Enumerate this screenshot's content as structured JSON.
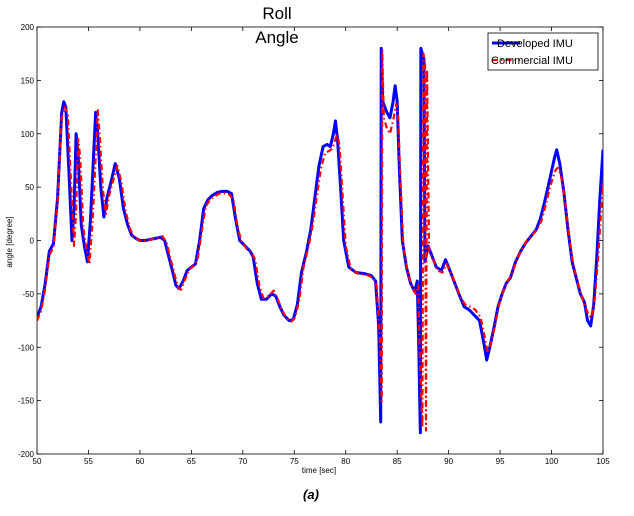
{
  "chart_data": {
    "type": "line",
    "title_lines": [
      "Roll",
      "Angle"
    ],
    "xlabel": "time [sec]",
    "ylabel": "angle [degree]",
    "xlim": [
      50,
      105
    ],
    "ylim": [
      -200,
      200
    ],
    "xticks": [
      50,
      55,
      60,
      65,
      70,
      75,
      80,
      85,
      90,
      95,
      100,
      105
    ],
    "yticks": [
      -200,
      -150,
      -100,
      -50,
      0,
      50,
      100,
      150,
      200
    ],
    "grid": false,
    "legend_position": "top-right",
    "caption": "(a)",
    "series": [
      {
        "name": "Developed IMU",
        "color": "#0000ff",
        "style": "solid",
        "points": [
          [
            50,
            -72
          ],
          [
            50.4,
            -62
          ],
          [
            50.8,
            -40
          ],
          [
            51.2,
            -10
          ],
          [
            51.6,
            -3
          ],
          [
            52,
            40
          ],
          [
            52.4,
            120
          ],
          [
            52.6,
            130
          ],
          [
            52.8,
            125
          ],
          [
            53.1,
            65
          ],
          [
            53.4,
            0
          ],
          [
            53.6,
            30
          ],
          [
            53.8,
            100
          ],
          [
            54.0,
            80
          ],
          [
            54.3,
            15
          ],
          [
            54.6,
            -5
          ],
          [
            54.9,
            -20
          ],
          [
            55.2,
            20
          ],
          [
            55.5,
            80
          ],
          [
            55.7,
            120
          ],
          [
            55.9,
            100
          ],
          [
            56.2,
            50
          ],
          [
            56.5,
            22
          ],
          [
            56.8,
            40
          ],
          [
            57.2,
            55
          ],
          [
            57.6,
            72
          ],
          [
            58,
            58
          ],
          [
            58.4,
            30
          ],
          [
            58.8,
            15
          ],
          [
            59.2,
            5
          ],
          [
            59.6,
            2
          ],
          [
            60,
            0
          ],
          [
            60.5,
            0
          ],
          [
            61,
            1
          ],
          [
            61.5,
            2
          ],
          [
            62,
            3
          ],
          [
            62.4,
            0
          ],
          [
            62.8,
            -15
          ],
          [
            63.2,
            -30
          ],
          [
            63.5,
            -42
          ],
          [
            63.8,
            -45
          ],
          [
            64.2,
            -38
          ],
          [
            64.6,
            -28
          ],
          [
            65,
            -25
          ],
          [
            65.4,
            -22
          ],
          [
            65.8,
            0
          ],
          [
            66.2,
            30
          ],
          [
            66.6,
            38
          ],
          [
            67,
            42
          ],
          [
            67.5,
            45
          ],
          [
            68,
            46
          ],
          [
            68.5,
            46
          ],
          [
            68.9,
            44
          ],
          [
            69.3,
            20
          ],
          [
            69.7,
            0
          ],
          [
            70.2,
            -5
          ],
          [
            70.7,
            -10
          ],
          [
            71.0,
            -15
          ],
          [
            71.4,
            -40
          ],
          [
            71.8,
            -55
          ],
          [
            72.3,
            -55
          ],
          [
            72.8,
            -50
          ],
          [
            73.2,
            -52
          ],
          [
            73.6,
            -62
          ],
          [
            74,
            -70
          ],
          [
            74.5,
            -75
          ],
          [
            74.9,
            -74
          ],
          [
            75.3,
            -60
          ],
          [
            75.7,
            -30
          ],
          [
            76.2,
            -10
          ],
          [
            76.6,
            10
          ],
          [
            77.0,
            40
          ],
          [
            77.4,
            70
          ],
          [
            77.8,
            88
          ],
          [
            78.2,
            90
          ],
          [
            78.5,
            88
          ],
          [
            78.8,
            100
          ],
          [
            79.0,
            112
          ],
          [
            79.2,
            95
          ],
          [
            79.5,
            50
          ],
          [
            79.8,
            0
          ],
          [
            80.3,
            -25
          ],
          [
            81,
            -30
          ],
          [
            81.8,
            -31
          ],
          [
            82.5,
            -33
          ],
          [
            82.9,
            -38
          ],
          [
            83.2,
            -80
          ],
          [
            83.4,
            -170
          ],
          [
            83.45,
            180
          ],
          [
            83.6,
            130
          ],
          [
            84.0,
            120
          ],
          [
            84.3,
            115
          ],
          [
            84.6,
            130
          ],
          [
            84.8,
            145
          ],
          [
            85.0,
            130
          ],
          [
            85.2,
            70
          ],
          [
            85.5,
            0
          ],
          [
            85.9,
            -25
          ],
          [
            86.3,
            -40
          ],
          [
            86.7,
            -48
          ],
          [
            86.95,
            -38
          ],
          [
            87.1,
            -100
          ],
          [
            87.25,
            -180
          ],
          [
            87.3,
            180
          ],
          [
            87.6,
            170
          ],
          [
            87.7,
            -20
          ],
          [
            88.0,
            -5
          ],
          [
            88.4,
            -15
          ],
          [
            88.8,
            -25
          ],
          [
            89.3,
            -28
          ],
          [
            89.7,
            -18
          ],
          [
            90.2,
            -30
          ],
          [
            90.6,
            -40
          ],
          [
            91,
            -50
          ],
          [
            91.5,
            -62
          ],
          [
            92,
            -65
          ],
          [
            92.5,
            -70
          ],
          [
            93,
            -75
          ],
          [
            93.4,
            -95
          ],
          [
            93.7,
            -112
          ],
          [
            94.0,
            -100
          ],
          [
            94.4,
            -82
          ],
          [
            94.8,
            -62
          ],
          [
            95.2,
            -50
          ],
          [
            95.6,
            -40
          ],
          [
            96,
            -35
          ],
          [
            96.5,
            -20
          ],
          [
            97,
            -10
          ],
          [
            97.5,
            -2
          ],
          [
            98,
            4
          ],
          [
            98.5,
            10
          ],
          [
            98.9,
            20
          ],
          [
            99.3,
            35
          ],
          [
            99.7,
            52
          ],
          [
            100.0,
            65
          ],
          [
            100.3,
            78
          ],
          [
            100.5,
            85
          ],
          [
            100.8,
            72
          ],
          [
            101.2,
            45
          ],
          [
            101.6,
            10
          ],
          [
            102,
            -20
          ],
          [
            102.4,
            -35
          ],
          [
            102.8,
            -50
          ],
          [
            103.2,
            -58
          ],
          [
            103.5,
            -75
          ],
          [
            103.8,
            -80
          ],
          [
            104.1,
            -60
          ],
          [
            104.4,
            -15
          ],
          [
            104.7,
            40
          ],
          [
            105,
            85
          ]
        ]
      },
      {
        "name": "Commercial IMU",
        "color": "#ff0000",
        "style": "dashdot",
        "points": [
          [
            50,
            -75
          ],
          [
            50.4,
            -66
          ],
          [
            50.8,
            -45
          ],
          [
            51.2,
            -14
          ],
          [
            51.6,
            -6
          ],
          [
            52,
            35
          ],
          [
            52.4,
            115
          ],
          [
            52.7,
            125
          ],
          [
            53.0,
            118
          ],
          [
            53.3,
            55
          ],
          [
            53.6,
            -5
          ],
          [
            53.8,
            28
          ],
          [
            54.0,
            95
          ],
          [
            54.2,
            78
          ],
          [
            54.5,
            12
          ],
          [
            54.8,
            -8
          ],
          [
            55.1,
            -22
          ],
          [
            55.4,
            18
          ],
          [
            55.7,
            78
          ],
          [
            55.9,
            122
          ],
          [
            56.1,
            98
          ],
          [
            56.4,
            48
          ],
          [
            56.7,
            25
          ],
          [
            57.0,
            42
          ],
          [
            57.4,
            56
          ],
          [
            57.8,
            70
          ],
          [
            58.2,
            55
          ],
          [
            58.6,
            28
          ],
          [
            59.0,
            12
          ],
          [
            59.4,
            3
          ],
          [
            59.8,
            1
          ],
          [
            60.2,
            -1
          ],
          [
            60.7,
            0
          ],
          [
            61.2,
            1
          ],
          [
            61.7,
            2
          ],
          [
            62.2,
            4
          ],
          [
            62.6,
            -2
          ],
          [
            63.0,
            -18
          ],
          [
            63.4,
            -33
          ],
          [
            63.7,
            -44
          ],
          [
            64.0,
            -46
          ],
          [
            64.4,
            -36
          ],
          [
            64.8,
            -27
          ],
          [
            65.2,
            -24
          ],
          [
            65.6,
            -18
          ],
          [
            66.0,
            8
          ],
          [
            66.4,
            32
          ],
          [
            66.8,
            38
          ],
          [
            67.2,
            41
          ],
          [
            67.7,
            44
          ],
          [
            68.2,
            44
          ],
          [
            68.7,
            43
          ],
          [
            69.1,
            38
          ],
          [
            69.5,
            12
          ],
          [
            69.9,
            -2
          ],
          [
            70.4,
            -8
          ],
          [
            70.9,
            -12
          ],
          [
            71.2,
            -18
          ],
          [
            71.6,
            -42
          ],
          [
            72.0,
            -54
          ],
          [
            72.5,
            -52
          ],
          [
            73.0,
            -47
          ],
          [
            73.4,
            -55
          ],
          [
            73.8,
            -65
          ],
          [
            74.2,
            -72
          ],
          [
            74.7,
            -76
          ],
          [
            75.1,
            -72
          ],
          [
            75.5,
            -55
          ],
          [
            75.9,
            -25
          ],
          [
            76.4,
            -5
          ],
          [
            76.8,
            15
          ],
          [
            77.2,
            42
          ],
          [
            77.6,
            68
          ],
          [
            78.0,
            82
          ],
          [
            78.4,
            84
          ],
          [
            78.7,
            86
          ],
          [
            79.0,
            95
          ],
          [
            79.2,
            100
          ],
          [
            79.4,
            88
          ],
          [
            79.7,
            42
          ],
          [
            80.0,
            -5
          ],
          [
            80.5,
            -27
          ],
          [
            81.2,
            -31
          ],
          [
            82.0,
            -32
          ],
          [
            82.7,
            -35
          ],
          [
            83.0,
            -42
          ],
          [
            83.3,
            -90
          ],
          [
            83.5,
            -150
          ],
          [
            83.55,
            178
          ],
          [
            83.7,
            115
          ],
          [
            84.0,
            105
          ],
          [
            84.3,
            100
          ],
          [
            84.6,
            112
          ],
          [
            84.9,
            128
          ],
          [
            85.1,
            115
          ],
          [
            85.3,
            60
          ],
          [
            85.6,
            -5
          ],
          [
            86.0,
            -28
          ],
          [
            86.4,
            -43
          ],
          [
            86.8,
            -50
          ],
          [
            87.05,
            -42
          ],
          [
            87.2,
            -110
          ],
          [
            87.45,
            -175
          ],
          [
            87.55,
            175
          ],
          [
            87.7,
            168
          ],
          [
            87.8,
            -178
          ],
          [
            87.9,
            160
          ],
          [
            88.1,
            -10
          ],
          [
            88.5,
            -18
          ],
          [
            88.9,
            -28
          ],
          [
            89.4,
            -30
          ],
          [
            89.8,
            -22
          ],
          [
            90.3,
            -32
          ],
          [
            90.7,
            -42
          ],
          [
            91.1,
            -52
          ],
          [
            91.6,
            -60
          ],
          [
            92.1,
            -62
          ],
          [
            92.6,
            -65
          ],
          [
            93.1,
            -72
          ],
          [
            93.5,
            -90
          ],
          [
            93.8,
            -105
          ],
          [
            94.1,
            -97
          ],
          [
            94.5,
            -80
          ],
          [
            94.9,
            -60
          ],
          [
            95.3,
            -48
          ],
          [
            95.7,
            -38
          ],
          [
            96.1,
            -33
          ],
          [
            96.6,
            -18
          ],
          [
            97.1,
            -8
          ],
          [
            97.6,
            0
          ],
          [
            98.1,
            5
          ],
          [
            98.6,
            10
          ],
          [
            99.0,
            18
          ],
          [
            99.4,
            32
          ],
          [
            99.8,
            48
          ],
          [
            100.1,
            58
          ],
          [
            100.4,
            66
          ],
          [
            100.6,
            68
          ],
          [
            100.9,
            62
          ],
          [
            101.3,
            38
          ],
          [
            101.7,
            5
          ],
          [
            102.1,
            -22
          ],
          [
            102.5,
            -38
          ],
          [
            102.9,
            -52
          ],
          [
            103.3,
            -62
          ],
          [
            103.6,
            -70
          ],
          [
            103.9,
            -72
          ],
          [
            104.2,
            -55
          ],
          [
            104.5,
            -20
          ],
          [
            104.8,
            25
          ],
          [
            105,
            55
          ]
        ]
      }
    ]
  }
}
